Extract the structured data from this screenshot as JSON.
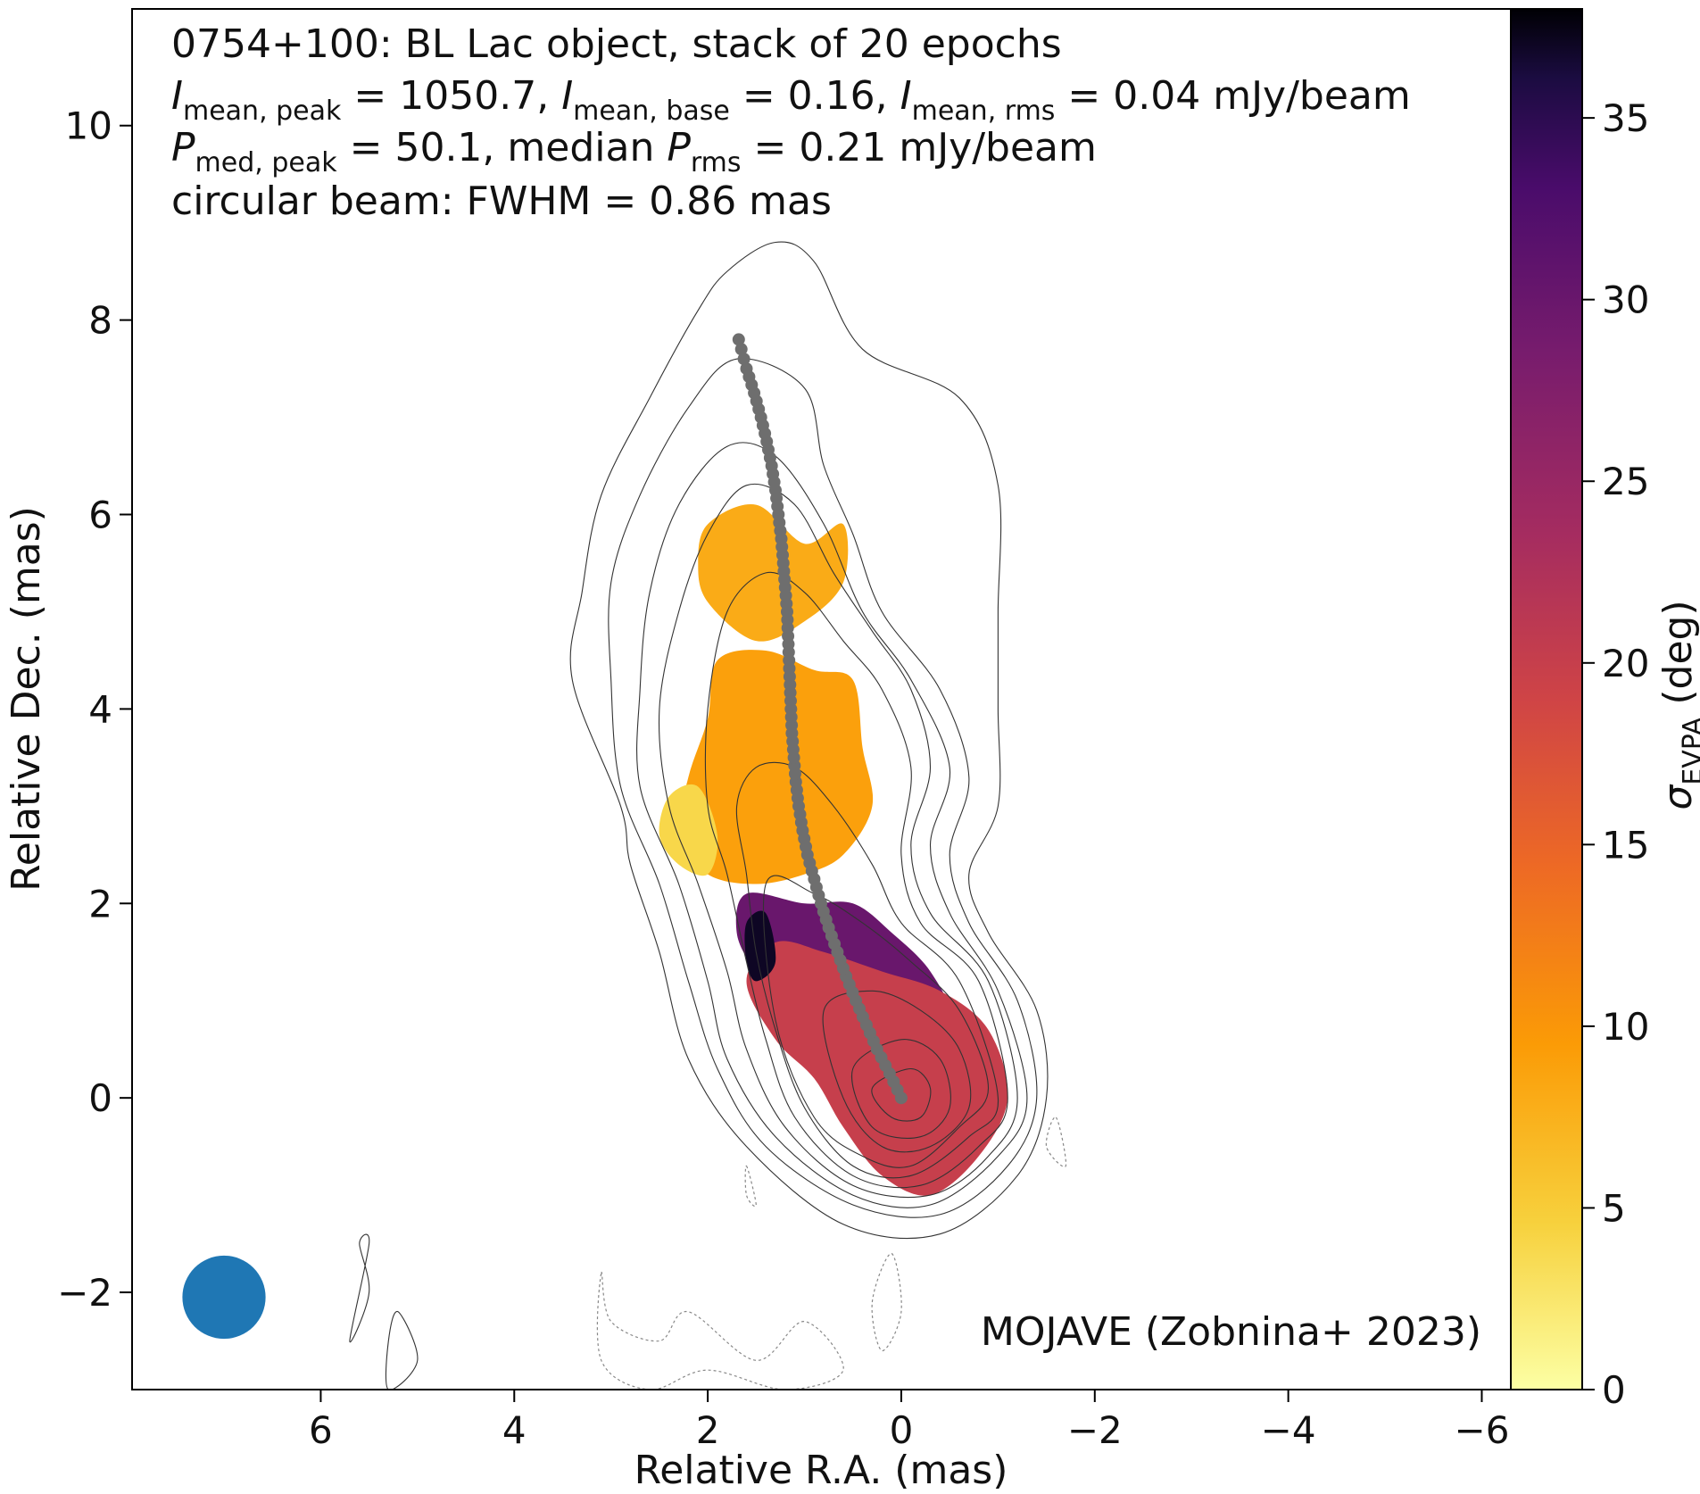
{
  "chart_data": {
    "type": "heatmap",
    "title_lines": [
      "0754+100: BL Lac object, stack of 20 epochs",
      "I_mean,peak = 1050.7, I_mean,base = 0.16, I_mean,rms = 0.04 mJy/beam",
      "P_med,peak = 50.1, median P_rms = 0.21 mJy/beam",
      "circular beam: FWHM = 0.86 mas"
    ],
    "xlabel": "Relative R.A. (mas)",
    "ylabel": "Relative Dec. (mas)",
    "colorbar_label": "σ_EVPA (deg)",
    "colormap": "inferno_r",
    "credit": "MOJAVE (Zobnina+ 2023)",
    "xlim": [
      7.95,
      -6.3
    ],
    "ylim": [
      -3.0,
      11.2
    ],
    "xticks": [
      6,
      4,
      2,
      0,
      -2,
      -4,
      -6
    ],
    "yticks": [
      -2,
      0,
      2,
      4,
      6,
      8,
      10
    ],
    "colorbar_range": [
      0,
      38
    ],
    "colorbar_ticks": [
      0,
      5,
      10,
      15,
      20,
      25,
      30,
      35
    ],
    "beam": {
      "center": [
        7.0,
        -2.05
      ],
      "fwhm_mas": 0.86,
      "color": "#1f77b4"
    },
    "ridgeline": {
      "color": "#6e6e6e",
      "points": [
        [
          0.0,
          0.0
        ],
        [
          0.12,
          0.25
        ],
        [
          0.25,
          0.5
        ],
        [
          0.36,
          0.75
        ],
        [
          0.47,
          1.0
        ],
        [
          0.57,
          1.25
        ],
        [
          0.66,
          1.5
        ],
        [
          0.75,
          1.75
        ],
        [
          0.83,
          2.0
        ],
        [
          0.9,
          2.25
        ],
        [
          0.97,
          2.5
        ],
        [
          1.02,
          2.75
        ],
        [
          1.06,
          3.0
        ],
        [
          1.09,
          3.25
        ],
        [
          1.11,
          3.5
        ],
        [
          1.13,
          3.75
        ],
        [
          1.14,
          4.0
        ],
        [
          1.15,
          4.25
        ],
        [
          1.16,
          4.5
        ],
        [
          1.17,
          4.75
        ],
        [
          1.18,
          5.0
        ],
        [
          1.2,
          5.25
        ],
        [
          1.22,
          5.5
        ],
        [
          1.24,
          5.75
        ],
        [
          1.27,
          6.0
        ],
        [
          1.3,
          6.25
        ],
        [
          1.34,
          6.5
        ],
        [
          1.39,
          6.75
        ],
        [
          1.45,
          7.0
        ],
        [
          1.52,
          7.25
        ],
        [
          1.6,
          7.5
        ],
        [
          1.68,
          7.8
        ]
      ]
    },
    "contours": [
      {
        "style": "solid",
        "points": [
          [
            2.9,
            3.0
          ],
          [
            3.4,
            4.3
          ],
          [
            3.3,
            5.2
          ],
          [
            3.1,
            6.2
          ],
          [
            2.6,
            7.2
          ],
          [
            2.1,
            8.1
          ],
          [
            1.8,
            8.5
          ],
          [
            1.3,
            8.8
          ],
          [
            0.9,
            8.6
          ],
          [
            0.4,
            7.7
          ],
          [
            -0.6,
            7.2
          ],
          [
            -1.0,
            6.3
          ],
          [
            -1.0,
            5.0
          ],
          [
            -1.0,
            4.0
          ],
          [
            -1.0,
            3.0
          ],
          [
            -0.7,
            2.3
          ],
          [
            -0.9,
            1.7
          ],
          [
            -1.4,
            0.9
          ],
          [
            -1.5,
            0.0
          ],
          [
            -1.2,
            -0.8
          ],
          [
            -0.4,
            -1.4
          ],
          [
            0.6,
            -1.3
          ],
          [
            1.6,
            -0.5
          ],
          [
            2.2,
            0.4
          ],
          [
            2.5,
            1.5
          ],
          [
            2.8,
            2.4
          ]
        ]
      },
      {
        "style": "solid",
        "points": [
          [
            2.9,
            3.2
          ],
          [
            3.0,
            4.3
          ],
          [
            3.0,
            5.3
          ],
          [
            2.7,
            6.2
          ],
          [
            2.2,
            7.1
          ],
          [
            1.7,
            7.6
          ],
          [
            1.0,
            7.3
          ],
          [
            0.8,
            6.5
          ],
          [
            0.5,
            5.8
          ],
          [
            0.2,
            5.0
          ],
          [
            -0.4,
            4.2
          ],
          [
            -0.7,
            3.3
          ],
          [
            -0.5,
            2.5
          ],
          [
            -0.7,
            1.8
          ],
          [
            -1.2,
            1.0
          ],
          [
            -1.4,
            0.0
          ],
          [
            -1.1,
            -0.7
          ],
          [
            -0.4,
            -1.2
          ],
          [
            0.5,
            -1.1
          ],
          [
            1.4,
            -0.5
          ],
          [
            1.9,
            0.3
          ],
          [
            2.2,
            1.2
          ],
          [
            2.5,
            2.2
          ]
        ]
      },
      {
        "style": "solid",
        "points": [
          [
            2.7,
            3.2
          ],
          [
            2.7,
            4.2
          ],
          [
            2.6,
            5.2
          ],
          [
            2.3,
            6.1
          ],
          [
            1.8,
            6.7
          ],
          [
            1.3,
            6.6
          ],
          [
            0.8,
            5.9
          ],
          [
            0.4,
            5.0
          ],
          [
            -0.1,
            4.3
          ],
          [
            -0.5,
            3.4
          ],
          [
            -0.3,
            2.6
          ],
          [
            -0.5,
            1.9
          ],
          [
            -1.0,
            1.1
          ],
          [
            -1.3,
            0.0
          ],
          [
            -1.0,
            -0.6
          ],
          [
            -0.3,
            -1.1
          ],
          [
            0.5,
            -1.0
          ],
          [
            1.3,
            -0.4
          ],
          [
            1.8,
            0.4
          ],
          [
            2.0,
            1.2
          ],
          [
            2.3,
            2.2
          ]
        ]
      },
      {
        "style": "solid",
        "points": [
          [
            2.4,
            3.0
          ],
          [
            2.5,
            4.0
          ],
          [
            2.3,
            5.0
          ],
          [
            2.0,
            5.8
          ],
          [
            1.6,
            6.3
          ],
          [
            1.1,
            6.1
          ],
          [
            0.7,
            5.4
          ],
          [
            0.3,
            4.8
          ],
          [
            -0.1,
            4.2
          ],
          [
            -0.3,
            3.4
          ],
          [
            -0.1,
            2.6
          ],
          [
            -0.3,
            1.9
          ],
          [
            -0.9,
            1.2
          ],
          [
            -1.2,
            0.0
          ],
          [
            -0.9,
            -0.6
          ],
          [
            -0.3,
            -1.0
          ],
          [
            0.5,
            -0.9
          ],
          [
            1.2,
            -0.3
          ],
          [
            1.6,
            0.5
          ],
          [
            1.8,
            1.3
          ],
          [
            2.1,
            2.2
          ]
        ]
      },
      {
        "style": "solid",
        "points": [
          [
            2.0,
            3.0
          ],
          [
            2.0,
            4.0
          ],
          [
            1.8,
            5.0
          ],
          [
            1.4,
            5.4
          ],
          [
            1.0,
            5.2
          ],
          [
            0.6,
            4.7
          ],
          [
            0.2,
            4.2
          ],
          [
            -0.1,
            3.4
          ],
          [
            0.0,
            2.5
          ],
          [
            -0.2,
            1.8
          ],
          [
            -0.8,
            1.2
          ],
          [
            -1.1,
            0.0
          ],
          [
            -0.8,
            -0.5
          ],
          [
            -0.2,
            -0.9
          ],
          [
            0.5,
            -0.8
          ],
          [
            1.1,
            -0.2
          ],
          [
            1.4,
            0.6
          ],
          [
            1.6,
            1.4
          ],
          [
            1.8,
            2.3
          ]
        ]
      },
      {
        "style": "solid",
        "points": [
          [
            1.7,
            3.0
          ],
          [
            1.5,
            3.4
          ],
          [
            1.1,
            3.4
          ],
          [
            0.7,
            3.0
          ],
          [
            0.3,
            2.4
          ],
          [
            0.0,
            1.8
          ],
          [
            -0.6,
            1.2
          ],
          [
            -1.0,
            0.0
          ],
          [
            -0.7,
            -0.4
          ],
          [
            -0.1,
            -0.8
          ],
          [
            0.5,
            -0.7
          ],
          [
            1.0,
            -0.1
          ],
          [
            1.3,
            0.7
          ],
          [
            1.5,
            1.5
          ],
          [
            1.6,
            2.3
          ]
        ]
      },
      {
        "style": "solid",
        "points": [
          [
            1.4,
            2.2
          ],
          [
            1.3,
            0.8
          ],
          [
            0.9,
            -0.2
          ],
          [
            0.4,
            -0.6
          ],
          [
            -0.1,
            -0.7
          ],
          [
            -0.6,
            -0.3
          ],
          [
            -0.9,
            0.1
          ],
          [
            -0.6,
            0.9
          ],
          [
            -0.1,
            1.4
          ],
          [
            0.4,
            1.8
          ],
          [
            0.9,
            2.1
          ]
        ]
      },
      {
        "style": "solid",
        "points": [
          [
            0.8,
            0.9
          ],
          [
            0.6,
            0.0
          ],
          [
            0.2,
            -0.5
          ],
          [
            -0.3,
            -0.5
          ],
          [
            -0.7,
            -0.1
          ],
          [
            -0.6,
            0.5
          ],
          [
            -0.2,
            0.9
          ],
          [
            0.3,
            1.1
          ]
        ]
      },
      {
        "style": "solid",
        "points": [
          [
            0.5,
            0.3
          ],
          [
            0.3,
            -0.3
          ],
          [
            -0.2,
            -0.4
          ],
          [
            -0.5,
            -0.1
          ],
          [
            -0.4,
            0.4
          ],
          [
            0.0,
            0.6
          ]
        ]
      },
      {
        "style": "solid",
        "points": [
          [
            0.3,
            0.1
          ],
          [
            0.1,
            -0.2
          ],
          [
            -0.2,
            -0.2
          ],
          [
            -0.3,
            0.1
          ],
          [
            -0.1,
            0.3
          ]
        ]
      },
      {
        "style": "solid",
        "points": [
          [
            5.6,
            -1.5
          ],
          [
            5.5,
            -2.0
          ],
          [
            5.7,
            -2.5
          ],
          [
            5.5,
            -1.5
          ]
        ]
      },
      {
        "style": "solid",
        "points": [
          [
            5.2,
            -2.2
          ],
          [
            5.0,
            -2.7
          ],
          [
            5.3,
            -3.0
          ],
          [
            5.3,
            -2.5
          ]
        ]
      },
      {
        "style": "dashed",
        "points": [
          [
            3.1,
            -1.8
          ],
          [
            3.0,
            -2.3
          ],
          [
            2.5,
            -2.5
          ],
          [
            2.2,
            -2.2
          ],
          [
            1.5,
            -2.7
          ],
          [
            1.0,
            -2.3
          ],
          [
            0.6,
            -2.8
          ],
          [
            1.2,
            -3.0
          ],
          [
            2.0,
            -2.8
          ],
          [
            2.6,
            -3.0
          ],
          [
            3.1,
            -2.7
          ]
        ]
      },
      {
        "style": "dashed",
        "points": [
          [
            0.1,
            -1.6
          ],
          [
            0.0,
            -2.2
          ],
          [
            0.2,
            -2.6
          ],
          [
            0.3,
            -2.1
          ]
        ]
      },
      {
        "style": "dashed",
        "points": [
          [
            1.6,
            -0.7
          ],
          [
            1.5,
            -1.1
          ],
          [
            1.6,
            -1.0
          ]
        ]
      },
      {
        "style": "dashed",
        "points": [
          [
            -1.6,
            -0.2
          ],
          [
            -1.7,
            -0.7
          ],
          [
            -1.5,
            -0.5
          ]
        ]
      }
    ],
    "polarization_regions": [
      {
        "sigma_evpa_deg": 8,
        "points": [
          [
            2.0,
            5.9
          ],
          [
            1.5,
            6.1
          ],
          [
            1.0,
            5.7
          ],
          [
            0.6,
            5.9
          ],
          [
            0.6,
            5.3
          ],
          [
            1.0,
            4.9
          ],
          [
            1.5,
            4.7
          ],
          [
            2.0,
            5.1
          ],
          [
            2.1,
            5.5
          ]
        ]
      },
      {
        "sigma_evpa_deg": 9,
        "points": [
          [
            1.9,
            4.5
          ],
          [
            1.4,
            4.6
          ],
          [
            0.9,
            4.4
          ],
          [
            0.5,
            4.3
          ],
          [
            0.4,
            3.6
          ],
          [
            0.3,
            3.0
          ],
          [
            0.6,
            2.5
          ],
          [
            1.0,
            2.3
          ],
          [
            1.5,
            2.2
          ],
          [
            2.0,
            2.3
          ],
          [
            2.3,
            2.7
          ],
          [
            2.2,
            3.3
          ],
          [
            2.0,
            3.9
          ]
        ]
      },
      {
        "sigma_evpa_deg": 4,
        "points": [
          [
            2.4,
            3.1
          ],
          [
            2.1,
            3.2
          ],
          [
            1.9,
            2.7
          ],
          [
            2.0,
            2.3
          ],
          [
            2.3,
            2.4
          ],
          [
            2.5,
            2.7
          ]
        ]
      },
      {
        "sigma_evpa_deg": 30,
        "points": [
          [
            1.6,
            2.1
          ],
          [
            1.0,
            2.0
          ],
          [
            0.5,
            2.0
          ],
          [
            0.1,
            1.7
          ],
          [
            -0.3,
            1.3
          ],
          [
            -0.5,
            0.8
          ],
          [
            -0.1,
            0.4
          ],
          [
            0.6,
            0.6
          ],
          [
            1.1,
            0.9
          ],
          [
            1.5,
            1.3
          ],
          [
            1.7,
            1.7
          ]
        ]
      },
      {
        "sigma_evpa_deg": 20,
        "points": [
          [
            1.6,
            1.2
          ],
          [
            1.3,
            0.6
          ],
          [
            0.9,
            0.2
          ],
          [
            0.6,
            -0.3
          ],
          [
            0.2,
            -0.8
          ],
          [
            -0.3,
            -1.0
          ],
          [
            -0.8,
            -0.6
          ],
          [
            -1.1,
            0.0
          ],
          [
            -0.9,
            0.7
          ],
          [
            -0.4,
            1.1
          ],
          [
            0.2,
            1.3
          ],
          [
            0.8,
            1.5
          ],
          [
            1.3,
            1.6
          ]
        ]
      },
      {
        "sigma_evpa_deg": 37,
        "points": [
          [
            1.6,
            1.8
          ],
          [
            1.4,
            1.9
          ],
          [
            1.3,
            1.4
          ],
          [
            1.5,
            1.2
          ],
          [
            1.6,
            1.4
          ]
        ]
      }
    ]
  }
}
